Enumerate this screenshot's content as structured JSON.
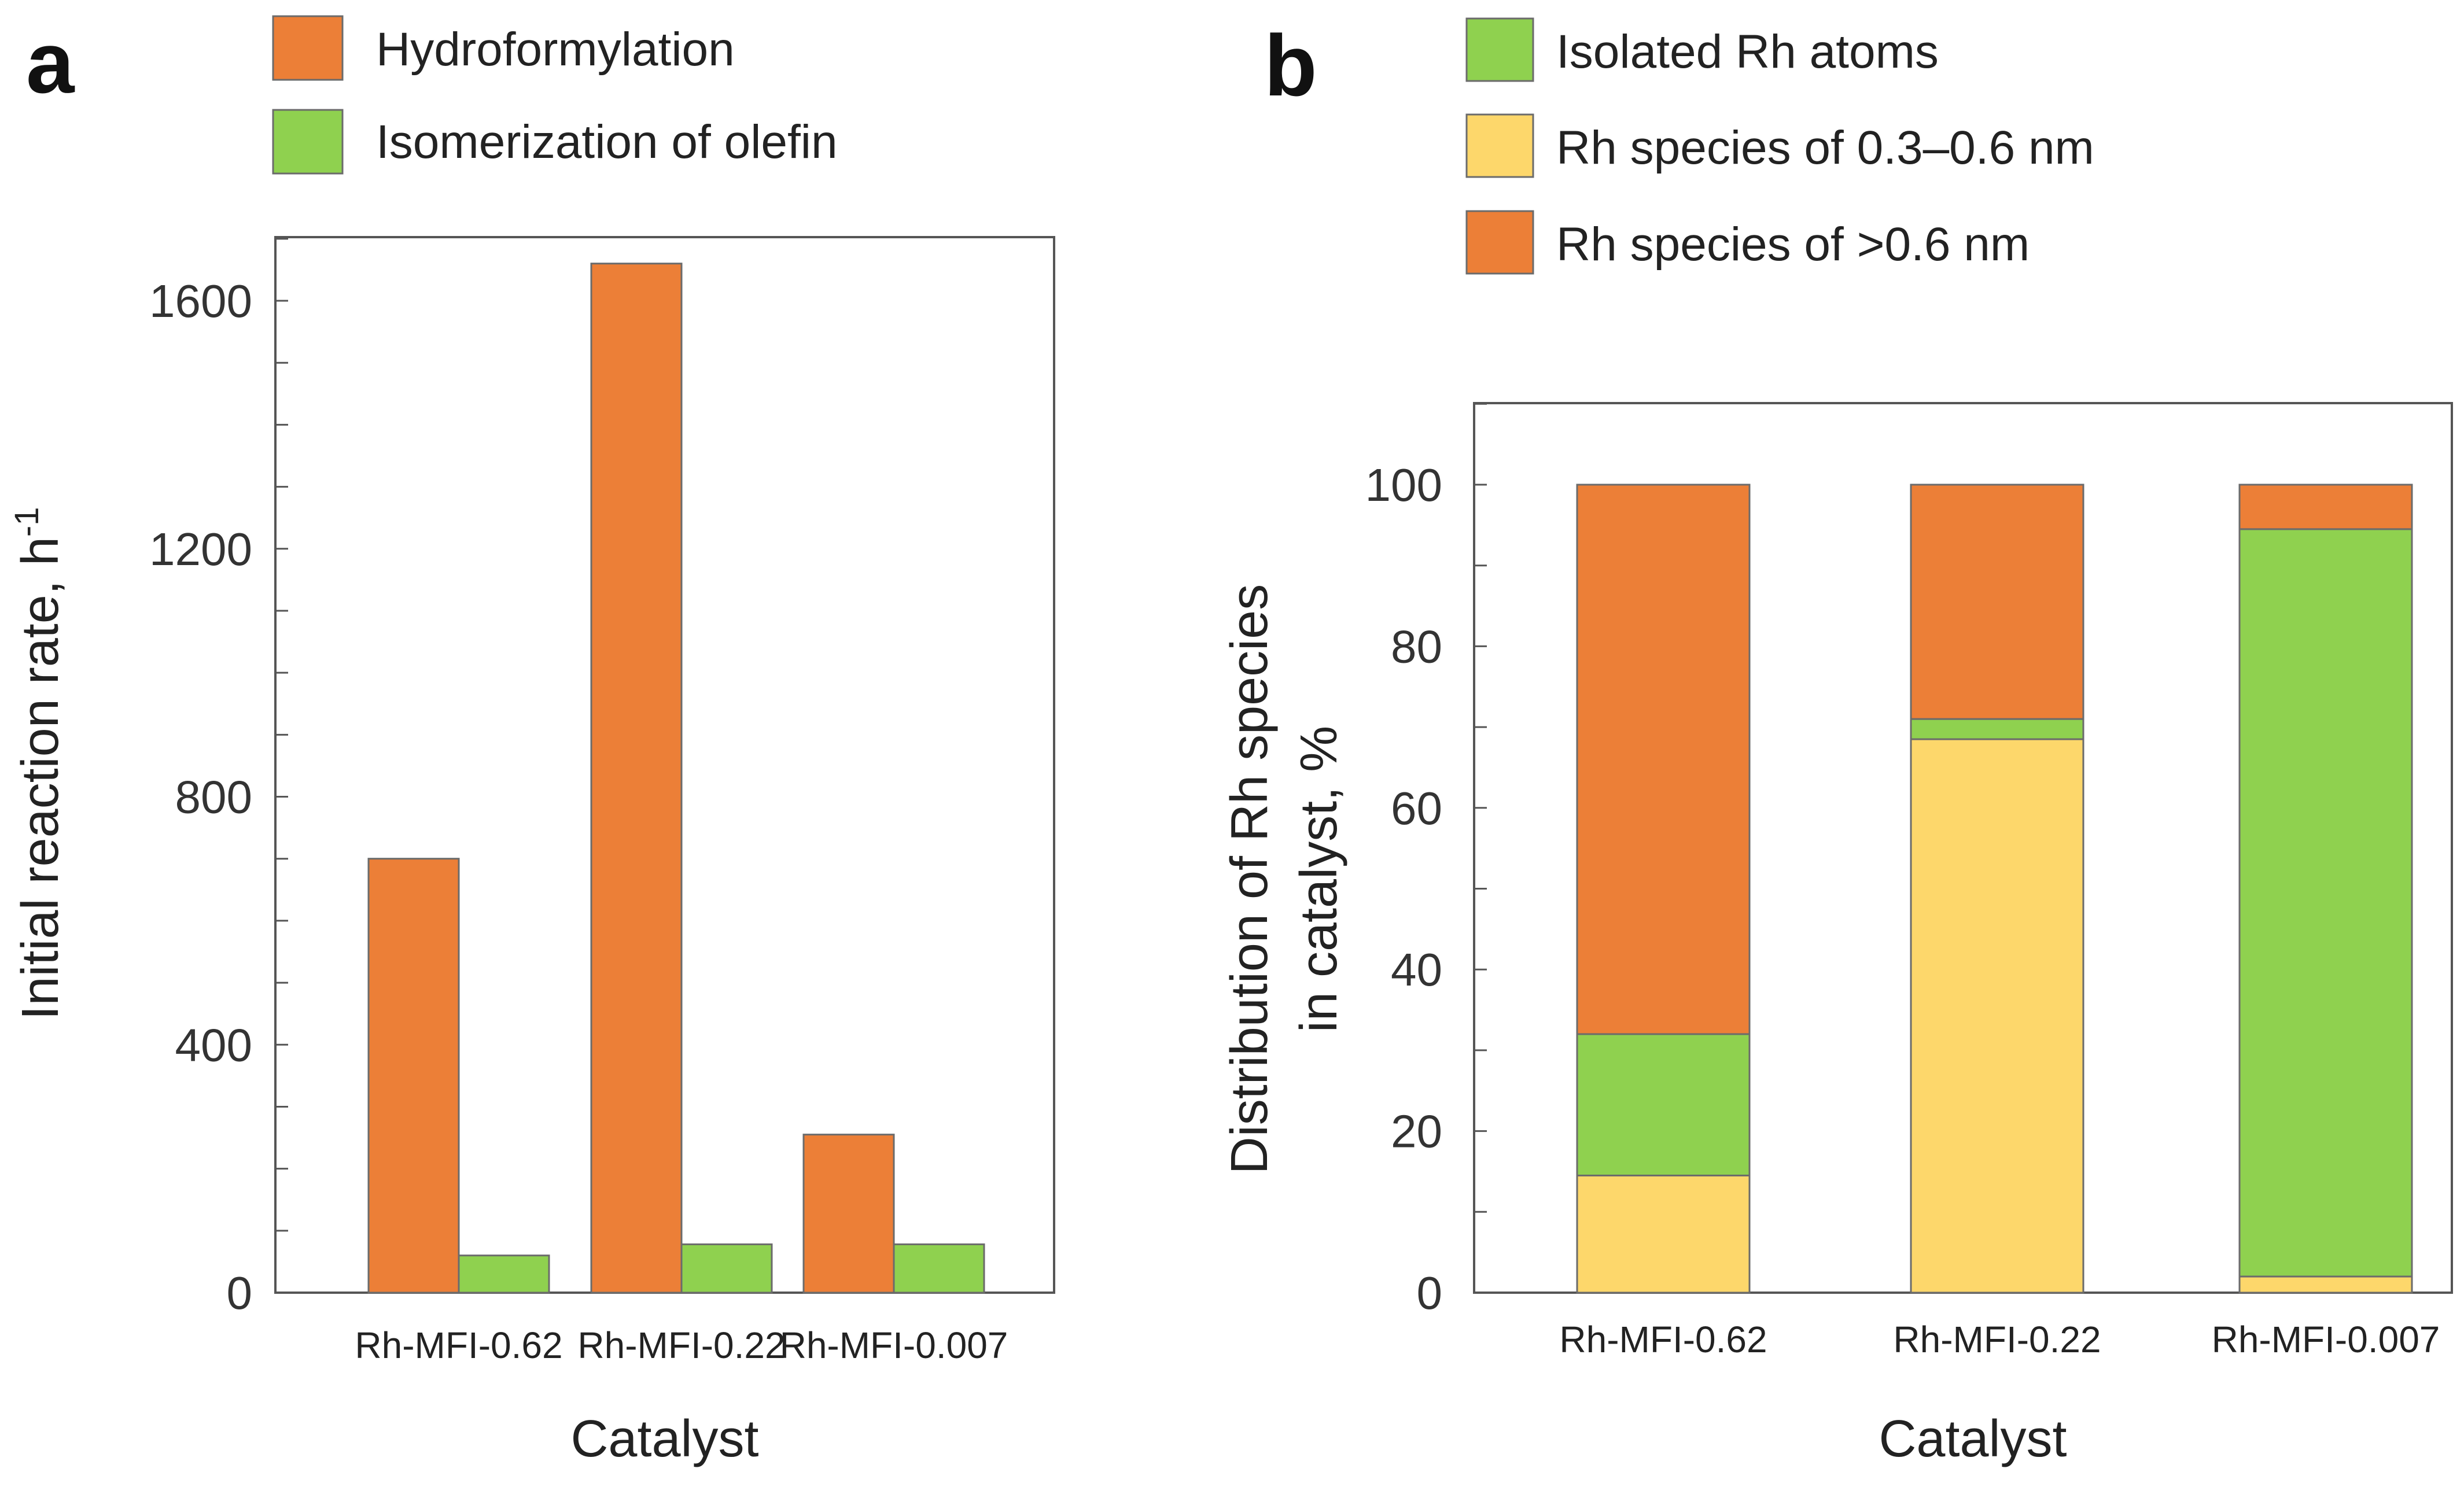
{
  "panels": [
    {
      "letter": "a",
      "legend": [
        {
          "label": "Hydroformylation",
          "color": "#ec7f37"
        },
        {
          "label": "Isomerization of olefin",
          "color": "#8fd14f"
        }
      ],
      "ylabel_main": "Initial reaction rate, h",
      "ylabel_sup": "-1",
      "xlabel": "Catalyst",
      "yticks": [
        "0",
        "400",
        "800",
        "1200",
        "1600"
      ]
    },
    {
      "letter": "b",
      "legend": [
        {
          "label": "Isolated Rh atoms",
          "color": "#8fd14f"
        },
        {
          "label": "Rh species of 0.3–0.6 nm",
          "color": "#fdd76b"
        },
        {
          "label": "Rh species of >0.6 nm",
          "color": "#ec7f37"
        }
      ],
      "ylabel_line1": "Distribution of Rh species",
      "ylabel_line2": "in catalyst, %",
      "xlabel": "Catalyst",
      "yticks": [
        "0",
        "20",
        "40",
        "60",
        "80",
        "100"
      ]
    }
  ],
  "chart_data": [
    {
      "type": "bar",
      "categories": [
        "Rh-MFI-0.62",
        "Rh-MFI-0.22",
        "Rh-MFI-0.007"
      ],
      "series": [
        {
          "name": "Hydroformylation",
          "values": [
            700,
            1660,
            255
          ],
          "color": "#ec7f37"
        },
        {
          "name": "Isomerization of olefin",
          "values": [
            60,
            78,
            78
          ],
          "color": "#8fd14f"
        }
      ],
      "title": "",
      "xlabel": "Catalyst",
      "ylabel": "Initial reaction rate, h-1",
      "ylim": [
        0,
        1700
      ],
      "yticks": [
        0,
        400,
        800,
        1200,
        1600
      ],
      "legend_position": "top"
    },
    {
      "type": "bar",
      "stacked": true,
      "categories": [
        "Rh-MFI-0.62",
        "Rh-MFI-0.22",
        "Rh-MFI-0.007"
      ],
      "series": [
        {
          "name": "Rh species of 0.3–0.6 nm",
          "values": [
            14.5,
            68.5,
            2
          ],
          "color": "#fdd76b"
        },
        {
          "name": "Isolated Rh atoms",
          "values": [
            17.5,
            2.5,
            92.5
          ],
          "color": "#8fd14f"
        },
        {
          "name": "Rh species of >0.6 nm",
          "values": [
            68,
            29,
            5.5
          ],
          "color": "#ec7f37"
        }
      ],
      "title": "",
      "xlabel": "Catalyst",
      "ylabel": "Distribution of Rh species in catalyst, %",
      "ylim": [
        0,
        110
      ],
      "yticks": [
        0,
        20,
        40,
        60,
        80,
        100
      ],
      "legend_position": "top"
    }
  ]
}
